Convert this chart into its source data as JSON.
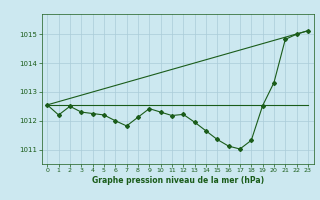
{
  "title": "Graphe pression niveau de la mer (hPa)",
  "background_color": "#cce8f0",
  "grid_color": "#aaccd8",
  "line_color": "#1a5c1a",
  "xlim": [
    -0.5,
    23.5
  ],
  "ylim": [
    1010.5,
    1015.7
  ],
  "yticks": [
    1011,
    1012,
    1013,
    1014,
    1015
  ],
  "xticks": [
    0,
    1,
    2,
    3,
    4,
    5,
    6,
    7,
    8,
    9,
    10,
    11,
    12,
    13,
    14,
    15,
    16,
    17,
    18,
    19,
    20,
    21,
    22,
    23
  ],
  "series1_x": [
    0,
    1,
    2,
    3,
    4,
    5,
    6,
    7,
    8,
    9,
    10,
    11,
    12,
    13,
    14,
    15,
    16,
    17,
    18,
    19,
    20,
    21,
    22,
    23
  ],
  "series1_y": [
    1012.55,
    1012.2,
    1012.5,
    1012.3,
    1012.25,
    1012.2,
    1012.0,
    1011.82,
    1012.12,
    1012.42,
    1012.3,
    1012.18,
    1012.22,
    1011.95,
    1011.65,
    1011.35,
    1011.12,
    1011.02,
    1011.32,
    1012.52,
    1013.32,
    1014.82,
    1015.0,
    1015.12
  ],
  "series2_x": [
    0,
    23
  ],
  "series2_y": [
    1012.55,
    1012.55
  ],
  "series3_x": [
    0,
    23
  ],
  "series3_y": [
    1012.55,
    1015.12
  ],
  "title_fontsize": 5.5,
  "tick_fontsize": 5,
  "marker_size": 2.0,
  "line_width": 0.8
}
